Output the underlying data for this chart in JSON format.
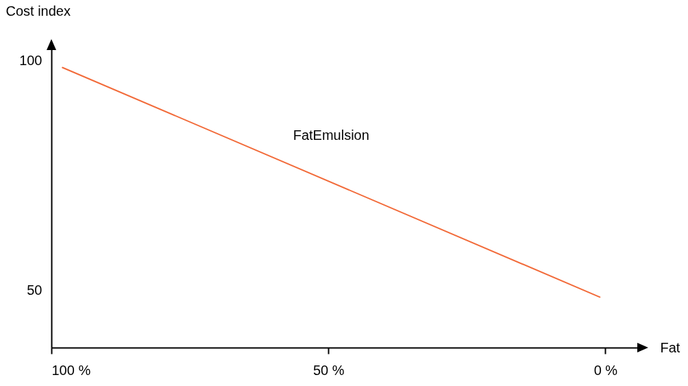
{
  "chart_data": {
    "type": "line",
    "xlabel": "Fat",
    "ylabel": "Cost index",
    "x": [
      98,
      1
    ],
    "series": [
      {
        "name": "FatEmulsion",
        "color": "#f26b3a",
        "values": [
          98.5,
          48.5
        ]
      }
    ],
    "xlim": [
      100,
      -7
    ],
    "ylim": [
      37.5,
      103.5
    ],
    "xticks": [
      {
        "value": 100,
        "label": "100 %"
      },
      {
        "value": 50,
        "label": "50 %"
      },
      {
        "value": 0,
        "label": "0 %"
      }
    ],
    "yticks": [
      50,
      100
    ],
    "grid": false,
    "marker": "none",
    "line_style": "solid"
  }
}
